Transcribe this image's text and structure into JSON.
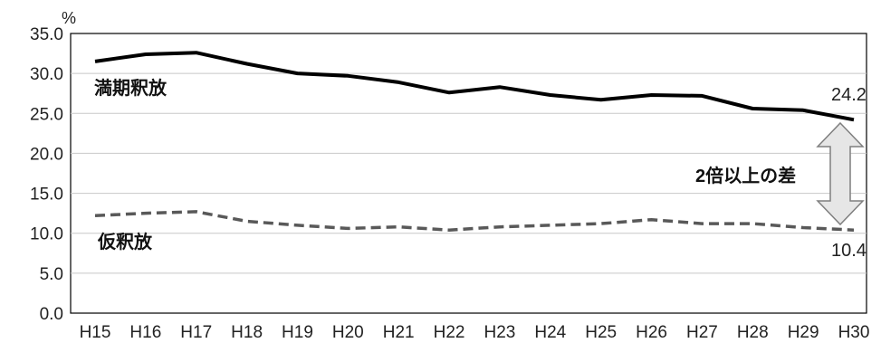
{
  "chart_data": {
    "type": "line",
    "y_unit": "%",
    "categories": [
      "H15",
      "H16",
      "H17",
      "H18",
      "H19",
      "H20",
      "H21",
      "H22",
      "H23",
      "H24",
      "H25",
      "H26",
      "H27",
      "H28",
      "H29",
      "H30"
    ],
    "series": [
      {
        "name": "満期釈放",
        "style": "solid",
        "color": "#000000",
        "values": [
          31.5,
          32.4,
          32.6,
          31.2,
          30.0,
          29.7,
          28.9,
          27.6,
          28.3,
          27.3,
          26.7,
          27.3,
          27.2,
          25.6,
          25.4,
          24.2
        ]
      },
      {
        "name": "仮釈放",
        "style": "dashed",
        "color": "#595959",
        "values": [
          12.2,
          12.5,
          12.7,
          11.5,
          11.0,
          10.6,
          10.8,
          10.4,
          10.8,
          11.0,
          11.2,
          11.7,
          11.2,
          11.2,
          10.7,
          10.4
        ]
      }
    ],
    "ylim": [
      0,
      35
    ],
    "yticks": [
      "0.0",
      "5.0",
      "10.0",
      "15.0",
      "20.0",
      "25.0",
      "30.0",
      "35.0"
    ],
    "grid": true,
    "annotations": {
      "end_value_top": "24.2",
      "end_value_bottom": "10.4",
      "gap_label": "2倍以上の差"
    }
  }
}
